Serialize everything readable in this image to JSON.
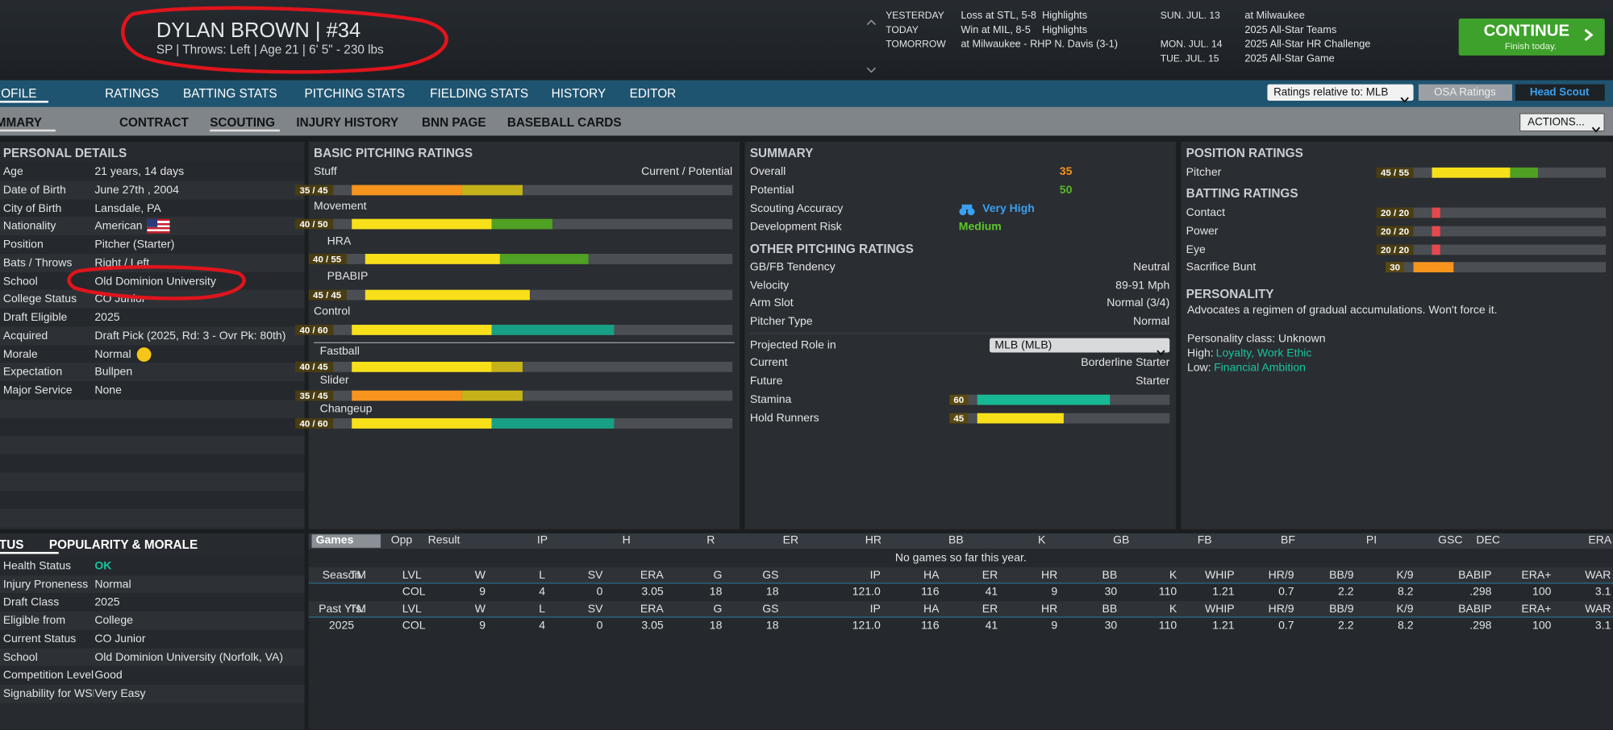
{
  "header": {
    "name": "DYLAN BROWN  |  #34",
    "info": "SP | Throws: Left  |  Age 21  |  6' 5\"  - 230 lbs"
  },
  "recent_games": [
    {
      "day": "YESTERDAY",
      "game": "Loss at STL, 5-8",
      "link": "Highlights"
    },
    {
      "day": "TODAY",
      "game": "Win at MIL, 8-5",
      "link": "Highlights"
    },
    {
      "day": "TOMORROW",
      "game": "at Milwaukee - RHP N. Davis (3-1)"
    }
  ],
  "upcoming": [
    {
      "date": "SUN. JUL. 13",
      "event": "at Milwaukee"
    },
    {
      "event": "2025 All-Star Teams"
    },
    {
      "date": "MON. JUL. 14",
      "event": "2025 All-Star HR Challenge"
    },
    {
      "date": "TUE. JUL. 15",
      "event": "2025 All-Star Game"
    }
  ],
  "continue_button": {
    "label": "CONTINUE",
    "sublabel": "Finish today."
  },
  "main_tabs": [
    "PROFILE",
    "RATINGS",
    "BATTING STATS",
    "PITCHING STATS",
    "FIELDING STATS",
    "HISTORY",
    "EDITOR"
  ],
  "sub_tabs": [
    "SUMMARY",
    "CONTRACT",
    "SCOUTING",
    "INJURY HISTORY",
    "BNN PAGE",
    "BASEBALL CARDS"
  ],
  "controls": {
    "ratings_relative": "Ratings relative to: MLB",
    "osa_ratings": "OSA Ratings",
    "head_scout": "Head Scout",
    "actions": "ACTIONS..."
  },
  "personal_details": {
    "title": "PERSONAL DETAILS",
    "rows": [
      [
        "Age",
        "21 years, 14 days"
      ],
      [
        "Date of Birth",
        "June 27th , 2004"
      ],
      [
        "City of Birth",
        "Lansdale, PA"
      ],
      [
        "Nationality",
        "American"
      ],
      [
        "Position",
        "Pitcher (Starter)"
      ],
      [
        "Bats / Throws",
        "Right / Left"
      ],
      [
        "School",
        "Old Dominion University"
      ],
      [
        "College Status",
        "CO Junior"
      ],
      [
        "Draft Eligible",
        "2025"
      ],
      [
        "Acquired",
        "Draft Pick (2025, Rd: 3 - Ovr Pk: 80th)"
      ],
      [
        "Morale",
        "Normal"
      ],
      [
        "Expectation",
        "Bullpen"
      ],
      [
        "Major Service",
        "None"
      ]
    ]
  },
  "basic_pitching": {
    "title": "BASIC PITCHING RATINGS",
    "column_label": "Current / Potential",
    "ratings": [
      {
        "name": "Stuff",
        "label": "35 / 45",
        "current": 35,
        "potential": 45
      },
      {
        "name": "Movement",
        "label": "40 / 50",
        "current": 40,
        "potential": 50
      },
      {
        "name": "HRA",
        "label": "40 / 55",
        "current": 40,
        "potential": 55
      },
      {
        "name": "PBABIP",
        "label": "45 / 45",
        "current": 45,
        "potential": 45
      },
      {
        "name": "Control",
        "label": "40 / 60",
        "current": 40,
        "potential": 60
      }
    ],
    "pitches": [
      {
        "name": "Fastball",
        "label": "40 / 45",
        "current": 40,
        "potential": 45
      },
      {
        "name": "Slider",
        "label": "35 / 45",
        "current": 35,
        "potential": 45
      },
      {
        "name": "Changeup",
        "label": "40 / 60",
        "current": 40,
        "potential": 60
      }
    ]
  },
  "summary": {
    "title": "SUMMARY",
    "overall_label": "Overall",
    "overall": 35,
    "potential_label": "Potential",
    "potential": 50,
    "scouting_label": "Scouting Accuracy",
    "scouting": "Very High",
    "risk_label": "Development Risk",
    "risk": "Medium"
  },
  "other_pitching": {
    "title": "OTHER PITCHING RATINGS",
    "rows": [
      [
        "GB/FB Tendency",
        "Neutral"
      ],
      [
        "Velocity",
        "89-91 Mph"
      ],
      [
        "Arm Slot",
        "Normal (3/4)"
      ],
      [
        "Pitcher Type",
        "Normal"
      ]
    ],
    "role_label": "Projected Role in",
    "role_select": "MLB (MLB)",
    "current_label": "Current",
    "current": "Borderline Starter",
    "future_label": "Future",
    "future": "Starter",
    "bars": [
      {
        "name": "Stamina",
        "value": 60
      },
      {
        "name": "Hold Runners",
        "value": 45
      }
    ]
  },
  "position_ratings": {
    "title": "POSITION RATINGS",
    "ratings": [
      {
        "name": "Pitcher",
        "label": "45 / 55",
        "current": 45,
        "potential": 55
      }
    ]
  },
  "batting_ratings": {
    "title": "BATTING RATINGS",
    "ratings": [
      {
        "name": "Contact",
        "label": "20 / 20",
        "current": 20,
        "potential": 20
      },
      {
        "name": "Power",
        "label": "20 / 20",
        "current": 20,
        "potential": 20
      },
      {
        "name": "Eye",
        "label": "20 / 20",
        "current": 20,
        "potential": 20
      },
      {
        "name": "Sacrifice Bunt",
        "value": 30
      }
    ]
  },
  "personality": {
    "title": "PERSONALITY",
    "description": "Advocates a regimen of gradual accumulations. Won't force it.",
    "class": "Personality class: Unknown",
    "high_label": "High:",
    "high": "Loyalty, Work Ethic",
    "low_label": "Low:",
    "low": "Financial Ambition"
  },
  "status": {
    "tabs": [
      "STATUS",
      "POPULARITY & MORALE"
    ],
    "rows": [
      [
        "Health Status",
        "OK"
      ],
      [
        "Injury Proneness",
        "Normal"
      ],
      [
        "Draft Class",
        "2025"
      ],
      [
        "Eligible from",
        "College"
      ],
      [
        "Current Status",
        "CO Junior"
      ],
      [
        "School",
        "Old Dominion University (Norfolk, VA)"
      ],
      [
        "Competition Level",
        "Good"
      ],
      [
        "Signability for WSH",
        "Very Easy"
      ]
    ]
  },
  "game_log": {
    "select": "Games",
    "columns": [
      "Opp",
      "Result",
      "IP",
      "H",
      "R",
      "ER",
      "HR",
      "BB",
      "K",
      "GB",
      "FB",
      "BF",
      "PI",
      "GSC",
      "DEC",
      "ERA"
    ],
    "empty_message": "No games so far this year."
  },
  "season_stats": {
    "columns": [
      "Season",
      "TM",
      "LVL",
      "W",
      "L",
      "SV",
      "ERA",
      "G",
      "GS",
      "IP",
      "HA",
      "ER",
      "HR",
      "BB",
      "K",
      "WHIP",
      "HR/9",
      "BB/9",
      "K/9",
      "BABIP",
      "ERA+",
      "WAR"
    ],
    "rows": [
      [
        null,
        null,
        "COL",
        "9",
        "4",
        "0",
        "3.05",
        "18",
        "18",
        "121.0",
        "116",
        "41",
        "9",
        "30",
        "110",
        "1.21",
        "0.7",
        "2.2",
        "8.2",
        ".298",
        "100",
        "3.1"
      ]
    ]
  },
  "past_stats": {
    "columns": [
      "Past Yrs.",
      "TM",
      "LVL",
      "W",
      "L",
      "SV",
      "ERA",
      "G",
      "GS",
      "IP",
      "HA",
      "ER",
      "HR",
      "BB",
      "K",
      "WHIP",
      "HR/9",
      "BB/9",
      "K/9",
      "BABIP",
      "ERA+",
      "WAR"
    ],
    "rows": [
      [
        "2025",
        null,
        "COL",
        "9",
        "4",
        "0",
        "3.05",
        "18",
        "18",
        "121.0",
        "116",
        "41",
        "9",
        "30",
        "110",
        "1.21",
        "0.7",
        "2.2",
        "8.2",
        ".298",
        "100",
        "3.1"
      ]
    ]
  }
}
